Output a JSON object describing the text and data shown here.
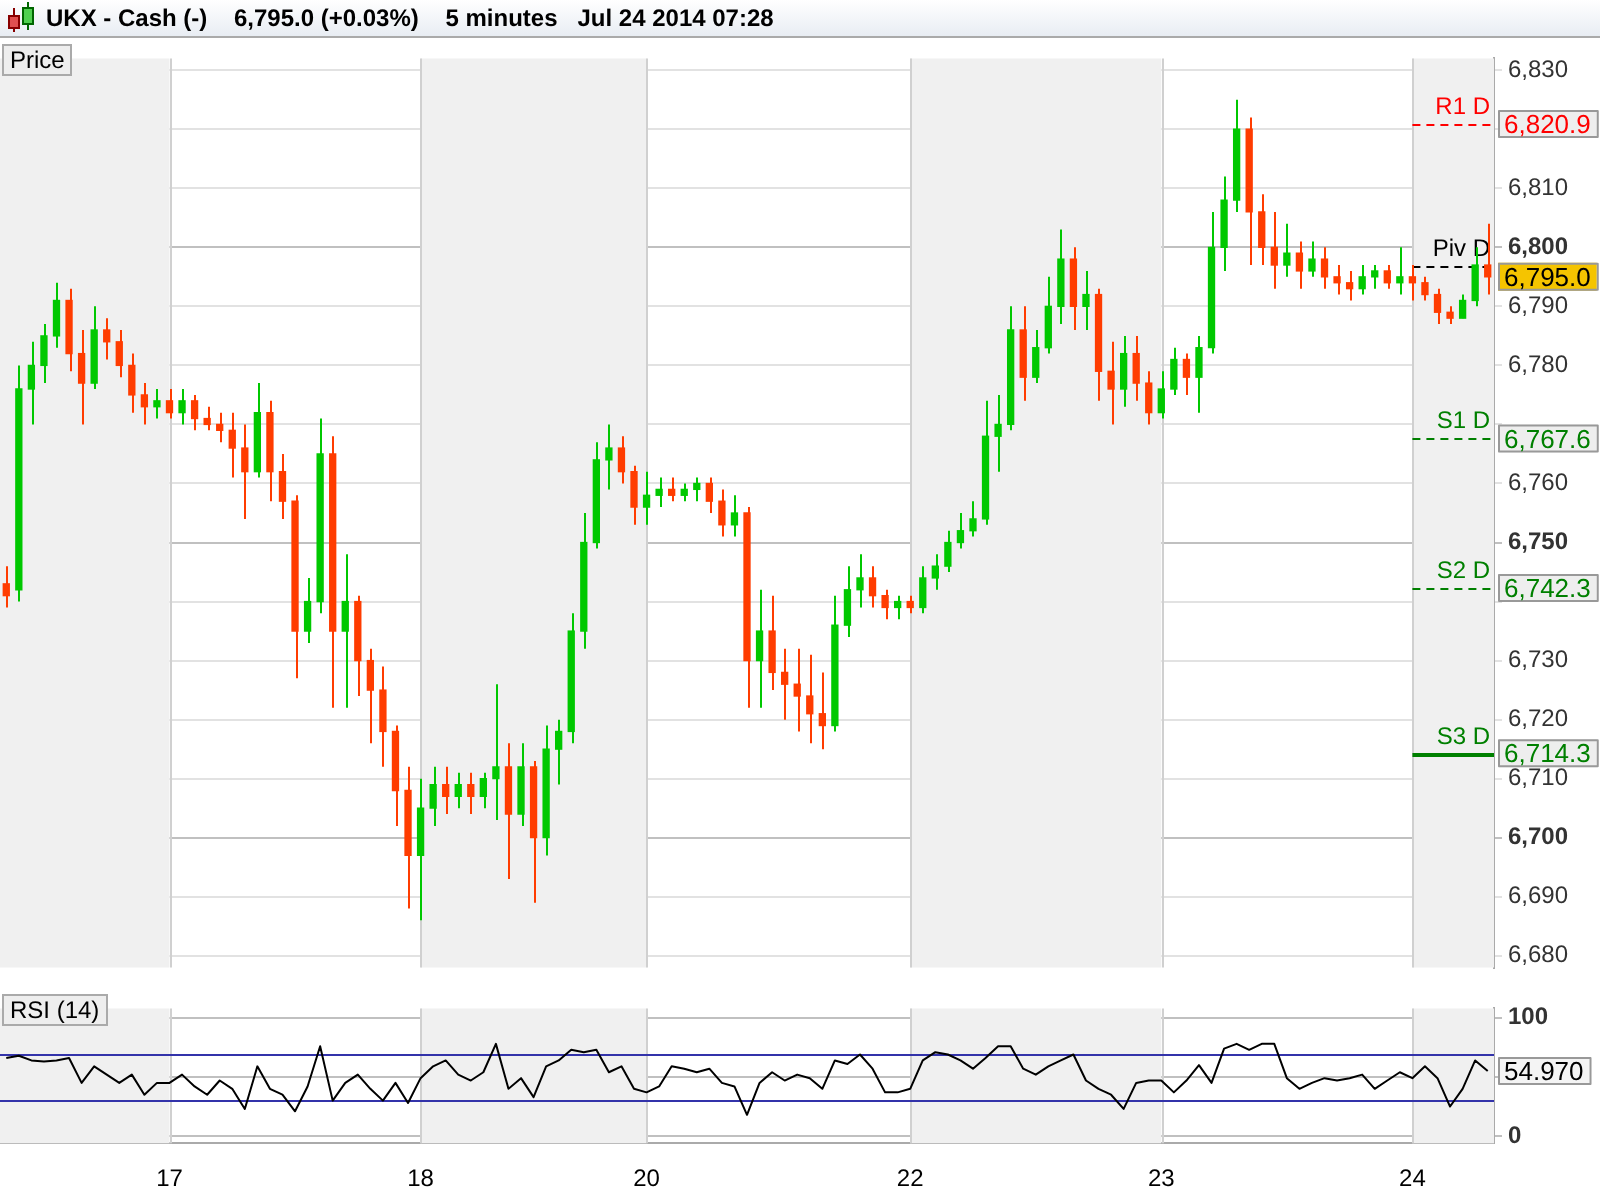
{
  "chart_data": [
    {
      "type": "candlestick",
      "title": "UKX - Cash (-)    6,795.0 (+0.03%)    5 minutes   Jul 24 2014 07:28",
      "subtitle": "Price",
      "categories": [
        null,
        null,
        null,
        null,
        null,
        null,
        null,
        null,
        null,
        null,
        null,
        null,
        null,
        "17",
        null,
        null,
        null,
        null,
        null,
        null,
        null,
        null,
        null,
        null,
        null,
        null,
        null,
        null,
        null,
        null,
        null,
        null,
        null,
        "18",
        null,
        null,
        null,
        null,
        null,
        null,
        null,
        null,
        null,
        null,
        null,
        null,
        null,
        null,
        null,
        null,
        null,
        "20",
        null,
        null,
        null,
        null,
        null,
        null,
        null,
        null,
        null,
        null,
        null,
        null,
        null,
        null,
        null,
        null,
        null,
        null,
        null,
        null,
        "22",
        null,
        null,
        null,
        null,
        null,
        null,
        null,
        null,
        null,
        null,
        null,
        null,
        null,
        null,
        null,
        null,
        null,
        null,
        null,
        "23",
        null,
        null,
        null,
        null,
        null,
        null,
        null,
        null,
        null,
        null,
        null,
        null,
        null,
        null,
        null,
        null,
        null,
        null,
        null,
        "24",
        null,
        null,
        null,
        null,
        null,
        null
      ],
      "ohlc": [
        [
          6743,
          6746,
          6739,
          6741
        ],
        [
          6742,
          6780,
          6740,
          6776
        ],
        [
          6776,
          6784,
          6770,
          6780
        ],
        [
          6780,
          6787,
          6777,
          6785
        ],
        [
          6785,
          6794,
          6783,
          6791
        ],
        [
          6791,
          6793,
          6779,
          6782
        ],
        [
          6782,
          6786,
          6770,
          6777
        ],
        [
          6777,
          6790,
          6776,
          6786
        ],
        [
          6786,
          6788,
          6781,
          6784
        ],
        [
          6784,
          6786,
          6778,
          6780
        ],
        [
          6780,
          6782,
          6772,
          6775
        ],
        [
          6775,
          6777,
          6770,
          6773
        ],
        [
          6773,
          6776,
          6771,
          6774
        ],
        [
          6774,
          6776,
          6771,
          6772
        ],
        [
          6772,
          6776,
          6770,
          6774
        ],
        [
          6774,
          6775,
          6769,
          6771
        ],
        [
          6771,
          6773,
          6769,
          6770
        ],
        [
          6770,
          6772,
          6767,
          6769
        ],
        [
          6769,
          6772,
          6761,
          6766
        ],
        [
          6766,
          6770,
          6754,
          6762
        ],
        [
          6762,
          6777,
          6761,
          6772
        ],
        [
          6772,
          6774,
          6757,
          6762
        ],
        [
          6762,
          6765,
          6754,
          6757
        ],
        [
          6757,
          6758,
          6727,
          6735
        ],
        [
          6735,
          6744,
          6733,
          6740
        ],
        [
          6740,
          6771,
          6738,
          6765
        ],
        [
          6765,
          6768,
          6722,
          6735
        ],
        [
          6735,
          6748,
          6722,
          6740
        ],
        [
          6740,
          6741,
          6724,
          6730
        ],
        [
          6730,
          6732,
          6716,
          6725
        ],
        [
          6725,
          6729,
          6712,
          6718
        ],
        [
          6718,
          6719,
          6702,
          6708
        ],
        [
          6708,
          6712,
          6688,
          6697
        ],
        [
          6697,
          6710,
          6686,
          6705
        ],
        [
          6705,
          6712,
          6702,
          6709
        ],
        [
          6709,
          6712,
          6704,
          6707
        ],
        [
          6707,
          6711,
          6705,
          6709
        ],
        [
          6709,
          6711,
          6704,
          6707
        ],
        [
          6707,
          6711,
          6705,
          6710
        ],
        [
          6710,
          6726,
          6703,
          6712
        ],
        [
          6712,
          6716,
          6693,
          6704
        ],
        [
          6704,
          6716,
          6702,
          6712
        ],
        [
          6712,
          6713,
          6689,
          6700
        ],
        [
          6700,
          6719,
          6697,
          6715
        ],
        [
          6715,
          6720,
          6709,
          6718
        ],
        [
          6718,
          6738,
          6716,
          6735
        ],
        [
          6735,
          6755,
          6732,
          6750
        ],
        [
          6750,
          6767,
          6749,
          6764
        ],
        [
          6764,
          6770,
          6759,
          6766
        ],
        [
          6766,
          6768,
          6760,
          6762
        ],
        [
          6762,
          6763,
          6753,
          6756
        ],
        [
          6756,
          6762,
          6753,
          6758
        ],
        [
          6758,
          6761,
          6756,
          6759
        ],
        [
          6759,
          6761,
          6757,
          6758
        ],
        [
          6758,
          6760,
          6757,
          6759
        ],
        [
          6759,
          6761,
          6757,
          6760
        ],
        [
          6760,
          6761,
          6755,
          6757
        ],
        [
          6757,
          6759,
          6751,
          6753
        ],
        [
          6753,
          6758,
          6751,
          6755
        ],
        [
          6755,
          6756,
          6722,
          6730
        ],
        [
          6730,
          6742,
          6722,
          6735
        ],
        [
          6735,
          6741,
          6725,
          6728
        ],
        [
          6728,
          6732,
          6720,
          6726
        ],
        [
          6726,
          6732,
          6718,
          6724
        ],
        [
          6724,
          6731,
          6716,
          6721
        ],
        [
          6721,
          6728,
          6715,
          6719
        ],
        [
          6719,
          6741,
          6718,
          6736
        ],
        [
          6736,
          6746,
          6734,
          6742
        ],
        [
          6742,
          6748,
          6739,
          6744
        ],
        [
          6744,
          6746,
          6739,
          6741
        ],
        [
          6741,
          6742,
          6737,
          6739
        ],
        [
          6739,
          6741,
          6737,
          6740
        ],
        [
          6740,
          6741,
          6738,
          6739
        ],
        [
          6739,
          6746,
          6738,
          6744
        ],
        [
          6744,
          6748,
          6742,
          6746
        ],
        [
          6746,
          6752,
          6745,
          6750
        ],
        [
          6750,
          6755,
          6749,
          6752
        ],
        [
          6752,
          6757,
          6751,
          6754
        ],
        [
          6754,
          6774,
          6753,
          6768
        ],
        [
          6768,
          6775,
          6762,
          6770
        ],
        [
          6770,
          6790,
          6769,
          6786
        ],
        [
          6786,
          6790,
          6774,
          6778
        ],
        [
          6778,
          6786,
          6777,
          6783
        ],
        [
          6783,
          6795,
          6782,
          6790
        ],
        [
          6790,
          6803,
          6787,
          6798
        ],
        [
          6798,
          6800,
          6786,
          6790
        ],
        [
          6790,
          6796,
          6786,
          6792
        ],
        [
          6792,
          6793,
          6774,
          6779
        ],
        [
          6779,
          6784,
          6770,
          6776
        ],
        [
          6776,
          6785,
          6773,
          6782
        ],
        [
          6782,
          6785,
          6774,
          6777
        ],
        [
          6777,
          6779,
          6770,
          6772
        ],
        [
          6772,
          6779,
          6771,
          6776
        ],
        [
          6776,
          6783,
          6775,
          6781
        ],
        [
          6781,
          6782,
          6775,
          6778
        ],
        [
          6778,
          6785,
          6772,
          6783
        ],
        [
          6783,
          6806,
          6782,
          6800
        ],
        [
          6800,
          6812,
          6796,
          6808
        ],
        [
          6808,
          6825,
          6806,
          6820
        ],
        [
          6820,
          6822,
          6797,
          6806
        ],
        [
          6806,
          6809,
          6797,
          6800
        ],
        [
          6800,
          6806,
          6793,
          6797
        ],
        [
          6797,
          6804,
          6795,
          6799
        ],
        [
          6799,
          6801,
          6793,
          6796
        ],
        [
          6796,
          6801,
          6795,
          6798
        ],
        [
          6798,
          6800,
          6793,
          6795
        ],
        [
          6795,
          6797,
          6792,
          6794
        ],
        [
          6794,
          6796,
          6791,
          6793
        ],
        [
          6793,
          6797,
          6792,
          6795
        ],
        [
          6795,
          6797,
          6793,
          6796
        ],
        [
          6796,
          6797,
          6793,
          6794
        ],
        [
          6794,
          6800,
          6792,
          6795
        ],
        [
          6795,
          6797,
          6791,
          6794
        ],
        [
          6794,
          6795,
          6791,
          6792
        ],
        [
          6792,
          6793,
          6787,
          6789
        ],
        [
          6789,
          6790,
          6787,
          6788
        ],
        [
          6788,
          6792,
          6788,
          6791
        ],
        [
          6791,
          6800,
          6790,
          6797
        ],
        [
          6797,
          6804,
          6792,
          6795
        ]
      ],
      "ylim": [
        6678,
        6832
      ],
      "yticks": [
        {
          "value": 6680,
          "label": "6,680"
        },
        {
          "value": 6690,
          "label": "6,690"
        },
        {
          "value": 6700,
          "label": "6,700"
        },
        {
          "value": 6710,
          "label": "6,710"
        },
        {
          "value": 6720,
          "label": "6,720"
        },
        {
          "value": 6730,
          "label": "6,730"
        },
        {
          "value": 6740,
          "label": null
        },
        {
          "value": 6750,
          "label": "6,750"
        },
        {
          "value": 6760,
          "label": "6,760"
        },
        {
          "value": 6770,
          "label": null
        },
        {
          "value": 6780,
          "label": "6,780"
        },
        {
          "value": 6790,
          "label": "6,790"
        },
        {
          "value": 6800,
          "label": "6,800"
        },
        {
          "value": 6810,
          "label": "6,810"
        },
        {
          "value": 6820,
          "label": null
        },
        {
          "value": 6830,
          "label": "6,830"
        }
      ],
      "grid": true,
      "tick_labels": "y",
      "ref_lines": [
        {
          "axis": "y",
          "value": 6820.9,
          "label": "R1 D",
          "color": "#ff0000",
          "line_style": "dashed"
        },
        {
          "axis": "y",
          "value": 6767.6,
          "label": "S1 D",
          "color": "#008000",
          "line_style": "dashed"
        },
        {
          "axis": "y",
          "value": 6742.3,
          "label": "S2 D",
          "color": "#008000",
          "line_style": "dashed"
        },
        {
          "axis": "y",
          "value": 6714.3,
          "label": "S3 D",
          "color": "#008000",
          "line_style": "solid"
        },
        {
          "axis": "y",
          "value": 6797,
          "label": "Piv D",
          "color": "#000000",
          "line_style": "dashed"
        }
      ],
      "annotations": [
        "6,795.0",
        "6,820.9",
        "6,767.6",
        "6,742.3",
        "6,714.3"
      ]
    },
    {
      "type": "line",
      "title": "RSI (14)",
      "categories": [
        null,
        null,
        null,
        null,
        null,
        null,
        null,
        null,
        null,
        null,
        null,
        null,
        null,
        "17",
        null,
        null,
        null,
        null,
        null,
        null,
        null,
        null,
        null,
        null,
        null,
        null,
        null,
        null,
        null,
        null,
        null,
        null,
        null,
        "18",
        null,
        null,
        null,
        null,
        null,
        null,
        null,
        null,
        null,
        null,
        null,
        null,
        null,
        null,
        null,
        null,
        null,
        "20",
        null,
        null,
        null,
        null,
        null,
        null,
        null,
        null,
        null,
        null,
        null,
        null,
        null,
        null,
        null,
        null,
        null,
        null,
        null,
        null,
        "22",
        null,
        null,
        null,
        null,
        null,
        null,
        null,
        null,
        null,
        null,
        null,
        null,
        null,
        null,
        null,
        null,
        null,
        null,
        null,
        "23",
        null,
        null,
        null,
        null,
        null,
        null,
        null,
        null,
        null,
        null,
        null,
        null,
        null,
        null,
        null,
        null,
        null,
        null,
        null,
        "24",
        null,
        null,
        null,
        null,
        null,
        null
      ],
      "values": [
        66,
        68,
        64,
        63,
        64,
        66,
        45,
        59,
        52,
        45,
        52,
        35,
        45,
        45,
        52,
        42,
        35,
        47,
        40,
        23,
        59,
        40,
        35,
        21,
        42,
        76,
        30,
        45,
        52,
        40,
        30,
        45,
        28,
        49,
        59,
        64,
        52,
        47,
        54,
        78,
        40,
        49,
        33,
        59,
        64,
        73,
        71,
        73,
        54,
        59,
        40,
        37,
        42,
        59,
        57,
        54,
        57,
        45,
        42,
        18,
        45,
        54,
        47,
        52,
        49,
        40,
        64,
        61,
        69,
        57,
        37,
        37,
        40,
        64,
        71,
        69,
        64,
        57,
        66,
        76,
        76,
        57,
        52,
        59,
        64,
        69,
        47,
        40,
        35,
        23,
        45,
        47,
        47,
        37,
        47,
        60,
        45,
        74,
        78,
        73,
        78,
        78,
        49,
        40,
        45,
        49,
        47,
        49,
        52,
        40,
        47,
        54,
        49,
        59,
        49,
        25,
        40,
        64,
        54.97
      ],
      "color": "#000000",
      "ylim": [
        -6,
        108
      ],
      "yticks": [
        0,
        {
          "value": 50,
          "label": null
        },
        100
      ],
      "grid": true,
      "ref_lines": [
        {
          "axis": "y",
          "value": 70,
          "color": "#3333aa",
          "line_style": "solid"
        },
        {
          "axis": "y",
          "value": 30,
          "color": "#3333aa",
          "line_style": "solid"
        }
      ],
      "annotations": [
        "54.970"
      ]
    }
  ]
}
